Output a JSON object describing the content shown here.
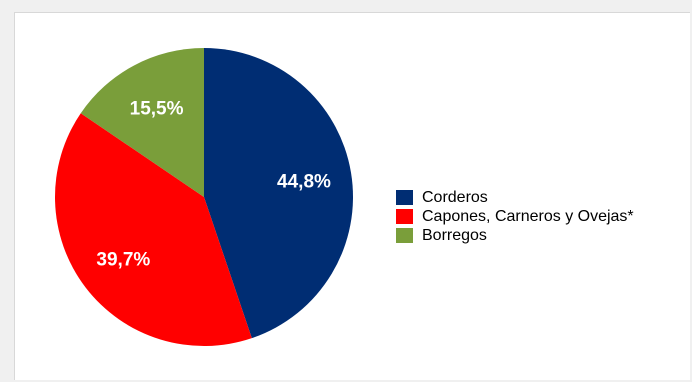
{
  "chart_data": {
    "type": "pie",
    "title": "",
    "legend_position": "right",
    "slices": [
      {
        "label": "Corderos",
        "value": 44.8,
        "display": "44,8%",
        "color": "#002d73"
      },
      {
        "label": "Capones, Carneros y Ovejas*",
        "value": 39.7,
        "display": "39,7%",
        "color": "#ff0000"
      },
      {
        "label": "Borregos",
        "value": 15.5,
        "display": "15,5%",
        "color": "#7a9e3a"
      }
    ]
  }
}
